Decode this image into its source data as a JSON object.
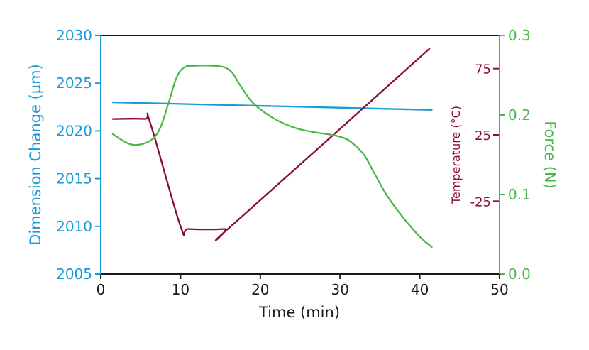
{
  "chart_data": {
    "type": "line",
    "xlabel": "Time (min)",
    "xlim": [
      0,
      50
    ],
    "xticks": [
      "0",
      "10",
      "20",
      "30",
      "40",
      "50"
    ],
    "xtick_values": [
      0,
      10,
      20,
      30,
      40,
      50
    ],
    "axes": {
      "dimension": {
        "label": "Dimension Change (µm)",
        "ylim": [
          2005,
          2030
        ],
        "ticks": [
          "2005",
          "2010",
          "2015",
          "2020",
          "2025",
          "2030"
        ],
        "tick_values": [
          2005,
          2010,
          2015,
          2020,
          2025,
          2030
        ],
        "color": "#1a9bd7"
      },
      "temperature": {
        "label": "Temperature (°C)",
        "ylim": [
          -80,
          100
        ],
        "ticks": [
          "75",
          "25",
          "-25"
        ],
        "tick_values": [
          75,
          25,
          -25
        ],
        "color": "#8b0a3c"
      },
      "force": {
        "label": "Force (N)",
        "ylim": [
          0,
          0.3
        ],
        "ticks": [
          "0.3",
          "0.2",
          "0.1",
          "0.0"
        ],
        "tick_values": [
          0.3,
          0.2,
          0.1,
          0.0
        ],
        "color": "#4ab848"
      }
    },
    "series": [
      {
        "axis": "dimension",
        "color": "#1a9bd7",
        "x": [
          1.5,
          41.5
        ],
        "y": [
          2023.0,
          2022.2
        ]
      },
      {
        "axis": "temperature",
        "color": "#8b0a3c",
        "x": [
          1.5,
          5.5,
          6.2,
          10.0,
          11.0,
          15.5,
          16.5,
          41.2
        ],
        "y": [
          37,
          37,
          34,
          -44,
          -46,
          -46,
          -43,
          90
        ]
      },
      {
        "axis": "force",
        "color": "#4ab848",
        "x": [
          1.5,
          3.5,
          5.0,
          6.5,
          7.5,
          8.5,
          9.5,
          10.5,
          12.0,
          14.0,
          15.5,
          16.5,
          17.5,
          19.0,
          21.0,
          23.0,
          25.0,
          27.0,
          29.0,
          30.5,
          31.5,
          33.0,
          34.5,
          36.0,
          38.0,
          40.0,
          41.5
        ],
        "y": [
          0.176,
          0.164,
          0.163,
          0.17,
          0.185,
          0.215,
          0.247,
          0.26,
          0.262,
          0.262,
          0.26,
          0.253,
          0.237,
          0.216,
          0.2,
          0.189,
          0.182,
          0.178,
          0.175,
          0.171,
          0.165,
          0.15,
          0.123,
          0.097,
          0.07,
          0.047,
          0.034
        ]
      }
    ]
  }
}
